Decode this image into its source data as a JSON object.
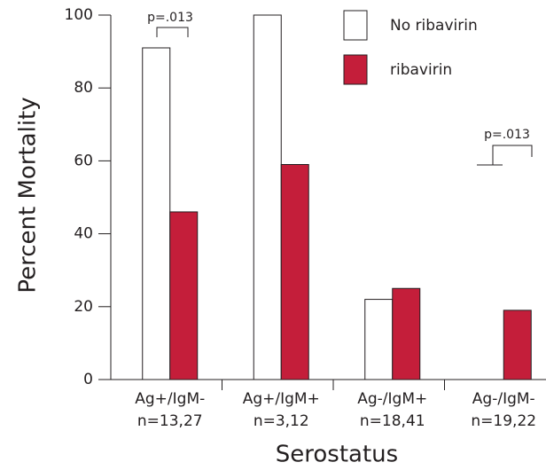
{
  "chart_data": {
    "type": "bar",
    "y_label": "Percent Mortality",
    "x_label": "Serostatus",
    "categories": [
      [
        "Ag+/IgM-",
        "n=13,27"
      ],
      [
        "Ag+/IgM+",
        "n=3,12"
      ],
      [
        "Ag-/IgM+",
        "n=18,41"
      ],
      [
        "Ag-/IgM-",
        "n=19,22"
      ]
    ],
    "series": [
      {
        "name": "No ribavirin",
        "color": "#ffffff",
        "values": [
          91,
          100,
          22,
          0
        ]
      },
      {
        "name": "ribavirin",
        "color": "#c41e3a",
        "values": [
          46,
          59,
          25,
          19
        ]
      }
    ],
    "annotations": [
      "p=.013",
      "p=.013"
    ],
    "ylim": [
      0,
      100
    ],
    "yticks": [
      0,
      20,
      40,
      60,
      80,
      100
    ]
  }
}
